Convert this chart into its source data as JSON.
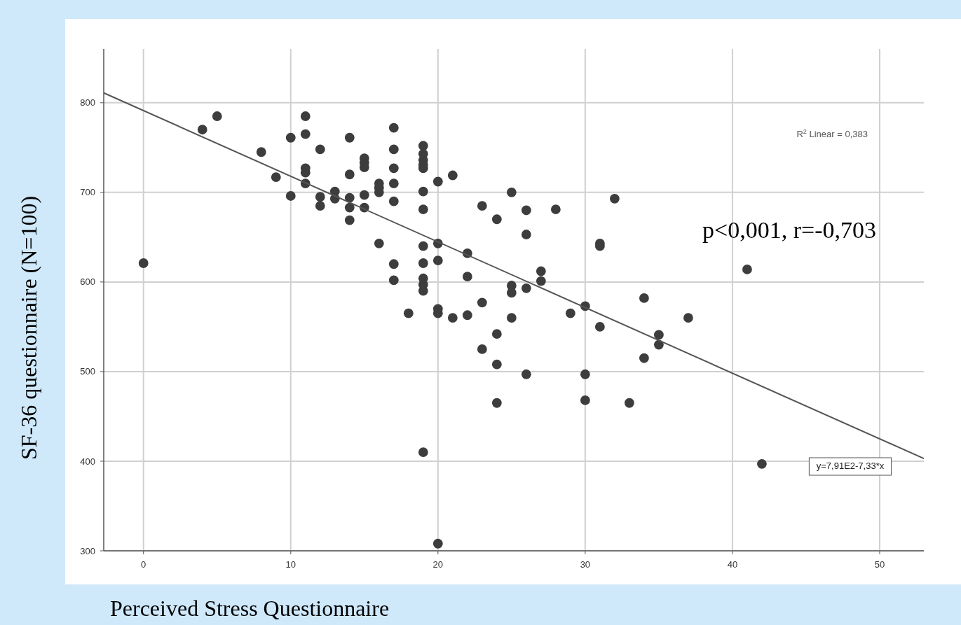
{
  "chart_data": {
    "type": "scatter",
    "xlabel": "Perceived Stress Questionnaire",
    "ylabel": "SF-36 questionnaire (N=100)",
    "annotations": [
      "R$^{2}$ Linear = 0,383",
      "p<0,001, r=-0,703",
      "y=7,91E2-7,33*x"
    ],
    "xlim": [
      -2.7,
      53
    ],
    "ylim": [
      300,
      860
    ],
    "xticks": [
      0,
      10,
      20,
      30,
      40,
      50
    ],
    "yticks": [
      300,
      400,
      500,
      600,
      700,
      800
    ],
    "grid": true,
    "series": [
      {
        "color": "#3d3d3d",
        "marker": "circle",
        "x": [
          0,
          4,
          5,
          8,
          9,
          10,
          10,
          11,
          11,
          11,
          11,
          11,
          12,
          12,
          12,
          13,
          13,
          14,
          14,
          14,
          14,
          14,
          15,
          15,
          15,
          15,
          15,
          16,
          16,
          16,
          16,
          17,
          17,
          17,
          17,
          17,
          17,
          17,
          18,
          19,
          19,
          19,
          19,
          19,
          19,
          19,
          19,
          19,
          19,
          19,
          19,
          19,
          20,
          20,
          20,
          20,
          20,
          20,
          21,
          21,
          22,
          22,
          22,
          23,
          23,
          23,
          24,
          24,
          24,
          24,
          25,
          25,
          25,
          25,
          26,
          26,
          26,
          26,
          27,
          27,
          28,
          29,
          30,
          30,
          30,
          31,
          31,
          31,
          32,
          33,
          34,
          34,
          35,
          35,
          37,
          41,
          42
        ],
        "values": [
          621,
          770,
          785,
          745,
          717,
          761,
          696,
          785,
          765,
          727,
          722,
          710,
          748,
          695,
          685,
          701,
          693,
          761,
          720,
          694,
          683,
          669,
          738,
          733,
          728,
          697,
          683,
          710,
          705,
          700,
          643,
          772,
          748,
          727,
          710,
          690,
          620,
          602,
          565,
          752,
          743,
          736,
          731,
          727,
          701,
          681,
          640,
          621,
          604,
          597,
          590,
          410,
          712,
          643,
          624,
          570,
          565,
          308,
          719,
          560,
          632,
          606,
          563,
          685,
          577,
          525,
          670,
          542,
          508,
          465,
          700,
          596,
          588,
          560,
          680,
          653,
          593,
          497,
          612,
          601,
          681,
          565,
          573,
          497,
          468,
          643,
          640,
          550,
          693,
          465,
          582,
          515,
          541,
          530,
          560,
          614,
          397
        ]
      },
      {
        "type": "line",
        "color": "#555555",
        "line_style": "solid",
        "x": [
          -2.7,
          53
        ],
        "values": [
          811,
          403
        ]
      }
    ]
  }
}
